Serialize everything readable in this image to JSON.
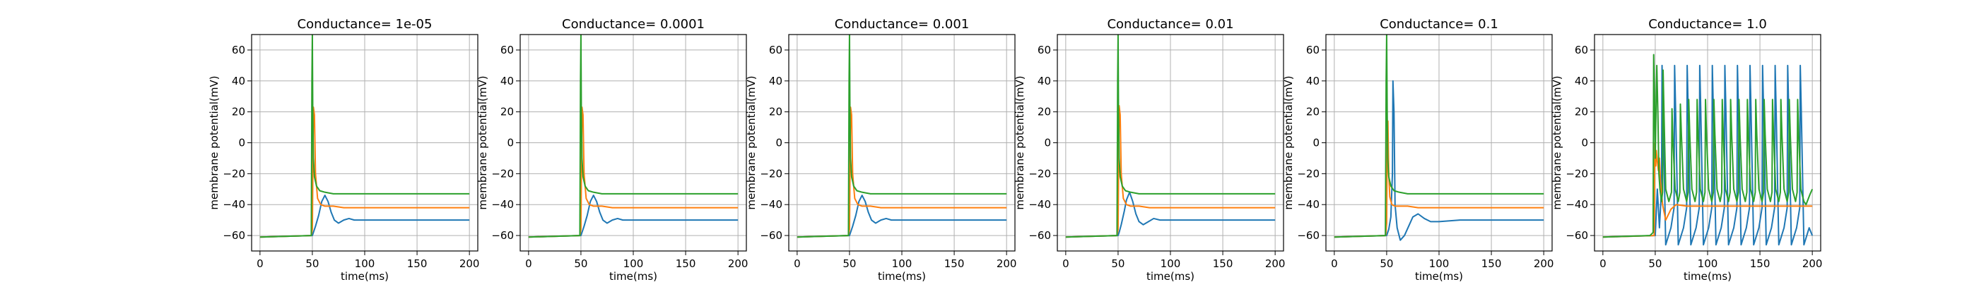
{
  "chart_data": [
    {
      "type": "line",
      "title": "Conductance= 1e-05",
      "xlabel": "time(ms)",
      "ylabel": "membrane potential(mV)",
      "xlim": [
        -8,
        208
      ],
      "ylim": [
        -70,
        70
      ],
      "xticks": [
        0,
        50,
        100,
        150,
        200
      ],
      "yticks": [
        -60,
        -40,
        -20,
        0,
        20,
        40,
        60
      ],
      "grid": true,
      "series": [
        {
          "color": "#1f77b4",
          "x": [
            0,
            49,
            50,
            51,
            53,
            56,
            59,
            62,
            65,
            68,
            71,
            75,
            80,
            85,
            90,
            100,
            120,
            150,
            200
          ],
          "y": [
            -61,
            -60,
            -60,
            -58,
            -54,
            -47,
            -38,
            -34,
            -38,
            -45,
            -50,
            -52,
            -50,
            -49,
            -50,
            -50,
            -50,
            -50,
            -50
          ]
        },
        {
          "color": "#ff7f0e",
          "x": [
            0,
            49,
            50,
            51,
            52,
            53,
            55,
            58,
            62,
            70,
            80,
            100,
            150,
            200
          ],
          "y": [
            -61,
            -60,
            -56,
            23,
            18,
            -20,
            -36,
            -40,
            -41,
            -41,
            -42,
            -42,
            -42,
            -42
          ]
        },
        {
          "color": "#2ca02c",
          "x": [
            0,
            49,
            49.6,
            50,
            50.4,
            51,
            52,
            54,
            57,
            62,
            70,
            80,
            100,
            150,
            200
          ],
          "y": [
            -61,
            -60,
            40,
            70,
            20,
            -10,
            -22,
            -28,
            -31,
            -32,
            -33,
            -33,
            -33,
            -33,
            -33
          ]
        }
      ]
    },
    {
      "type": "line",
      "title": "Conductance= 0.0001",
      "xlabel": "time(ms)",
      "ylabel": "membrane potential(mV)",
      "xlim": [
        -8,
        208
      ],
      "ylim": [
        -70,
        70
      ],
      "xticks": [
        0,
        50,
        100,
        150,
        200
      ],
      "yticks": [
        -60,
        -40,
        -20,
        0,
        20,
        40,
        60
      ],
      "grid": true,
      "series": [
        {
          "color": "#1f77b4",
          "x": [
            0,
            49,
            50,
            51,
            53,
            56,
            59,
            62,
            65,
            68,
            71,
            75,
            80,
            85,
            90,
            100,
            120,
            150,
            200
          ],
          "y": [
            -61,
            -60,
            -60,
            -58,
            -54,
            -47,
            -38,
            -34,
            -38,
            -45,
            -50,
            -52,
            -50,
            -49,
            -50,
            -50,
            -50,
            -50,
            -50
          ]
        },
        {
          "color": "#ff7f0e",
          "x": [
            0,
            49,
            50,
            51,
            52,
            53,
            55,
            58,
            62,
            70,
            80,
            100,
            150,
            200
          ],
          "y": [
            -61,
            -60,
            -56,
            23,
            18,
            -20,
            -36,
            -40,
            -41,
            -41,
            -42,
            -42,
            -42,
            -42
          ]
        },
        {
          "color": "#2ca02c",
          "x": [
            0,
            49,
            49.6,
            50,
            50.4,
            51,
            52,
            54,
            57,
            62,
            70,
            80,
            100,
            150,
            200
          ],
          "y": [
            -61,
            -60,
            40,
            70,
            20,
            -10,
            -22,
            -28,
            -31,
            -32,
            -33,
            -33,
            -33,
            -33,
            -33
          ]
        }
      ]
    },
    {
      "type": "line",
      "title": "Conductance= 0.001",
      "xlabel": "time(ms)",
      "ylabel": "membrane potential(mV)",
      "xlim": [
        -8,
        208
      ],
      "ylim": [
        -70,
        70
      ],
      "xticks": [
        0,
        50,
        100,
        150,
        200
      ],
      "yticks": [
        -60,
        -40,
        -20,
        0,
        20,
        40,
        60
      ],
      "grid": true,
      "series": [
        {
          "color": "#1f77b4",
          "x": [
            0,
            49,
            50,
            51,
            53,
            56,
            59,
            62,
            65,
            68,
            71,
            75,
            80,
            85,
            90,
            100,
            120,
            150,
            200
          ],
          "y": [
            -61,
            -60,
            -60,
            -58,
            -54,
            -47,
            -38,
            -34,
            -38,
            -45,
            -50,
            -52,
            -50,
            -49,
            -50,
            -50,
            -50,
            -50,
            -50
          ]
        },
        {
          "color": "#ff7f0e",
          "x": [
            0,
            49,
            50,
            51,
            52,
            53,
            55,
            58,
            62,
            70,
            80,
            100,
            150,
            200
          ],
          "y": [
            -61,
            -60,
            -56,
            23,
            18,
            -20,
            -36,
            -40,
            -41,
            -41,
            -42,
            -42,
            -42,
            -42
          ]
        },
        {
          "color": "#2ca02c",
          "x": [
            0,
            49,
            49.6,
            50,
            50.4,
            51,
            52,
            54,
            57,
            62,
            70,
            80,
            100,
            150,
            200
          ],
          "y": [
            -61,
            -60,
            40,
            70,
            20,
            -10,
            -22,
            -28,
            -31,
            -32,
            -33,
            -33,
            -33,
            -33,
            -33
          ]
        }
      ]
    },
    {
      "type": "line",
      "title": "Conductance= 0.01",
      "xlabel": "time(ms)",
      "ylabel": "membrane potential(mV)",
      "xlim": [
        -8,
        208
      ],
      "ylim": [
        -70,
        70
      ],
      "xticks": [
        0,
        50,
        100,
        150,
        200
      ],
      "yticks": [
        -60,
        -40,
        -20,
        0,
        20,
        40,
        60
      ],
      "grid": true,
      "series": [
        {
          "color": "#1f77b4",
          "x": [
            0,
            49,
            50,
            51,
            53,
            56,
            58,
            61,
            64,
            67,
            70,
            74,
            79,
            84,
            90,
            100,
            120,
            150,
            200
          ],
          "y": [
            -61,
            -60,
            -60,
            -58,
            -53,
            -44,
            -37,
            -32,
            -38,
            -46,
            -51,
            -53,
            -51,
            -49,
            -50,
            -50,
            -50,
            -50,
            -50
          ]
        },
        {
          "color": "#ff7f0e",
          "x": [
            0,
            49,
            50,
            51,
            52,
            53,
            55,
            58,
            62,
            70,
            80,
            100,
            150,
            200
          ],
          "y": [
            -61,
            -60,
            -56,
            24,
            18,
            -20,
            -36,
            -40,
            -41,
            -41,
            -42,
            -42,
            -42,
            -42
          ]
        },
        {
          "color": "#2ca02c",
          "x": [
            0,
            49,
            49.6,
            50,
            50.4,
            51,
            52,
            54,
            57,
            62,
            70,
            80,
            100,
            150,
            200
          ],
          "y": [
            -61,
            -60,
            40,
            70,
            20,
            -10,
            -22,
            -28,
            -31,
            -32,
            -33,
            -33,
            -33,
            -33,
            -33
          ]
        }
      ]
    },
    {
      "type": "line",
      "title": "Conductance= 0.1",
      "xlabel": "time(ms)",
      "ylabel": "membrane potential(mV)",
      "xlim": [
        -8,
        208
      ],
      "ylim": [
        -70,
        70
      ],
      "xticks": [
        0,
        50,
        100,
        150,
        200
      ],
      "yticks": [
        -60,
        -40,
        -20,
        0,
        20,
        40,
        60
      ],
      "grid": true,
      "series": [
        {
          "color": "#1f77b4",
          "x": [
            0,
            49,
            50,
            52,
            54,
            55.5,
            56,
            57,
            58,
            60,
            63,
            67,
            71,
            75,
            80,
            86,
            92,
            100,
            120,
            150,
            200
          ],
          "y": [
            -61,
            -60,
            -60,
            -56,
            -48,
            -20,
            40,
            20,
            -40,
            -55,
            -63,
            -60,
            -54,
            -48,
            -46,
            -49,
            -51,
            -51,
            -50,
            -50,
            -50
          ]
        },
        {
          "color": "#ff7f0e",
          "x": [
            0,
            49,
            50,
            50.6,
            51.2,
            52,
            53,
            55,
            58,
            62,
            70,
            80,
            100,
            150,
            200
          ],
          "y": [
            -61,
            -60,
            -52,
            8,
            14,
            -20,
            -35,
            -40,
            -41,
            -41,
            -41,
            -42,
            -42,
            -42,
            -42
          ]
        },
        {
          "color": "#2ca02c",
          "x": [
            0,
            48.8,
            49.5,
            50,
            50.5,
            51,
            52,
            54,
            57,
            62,
            70,
            80,
            100,
            150,
            200
          ],
          "y": [
            -61,
            -60,
            40,
            70,
            20,
            -10,
            -22,
            -28,
            -31,
            -32,
            -33,
            -33,
            -33,
            -33,
            -33
          ]
        }
      ]
    },
    {
      "type": "line",
      "title": "Conductance= 1.0",
      "xlabel": "time(ms)",
      "ylabel": "membrane potential(mV)",
      "xlim": [
        -8,
        208
      ],
      "ylim": [
        -70,
        70
      ],
      "xticks": [
        0,
        50,
        100,
        150,
        200
      ],
      "yticks": [
        -60,
        -40,
        -20,
        0,
        20,
        40,
        60
      ],
      "grid": true,
      "series": [
        {
          "color": "#1f77b4",
          "x": [
            0,
            49,
            50,
            52,
            54,
            56,
            56.5,
            57.5,
            60,
            65,
            68,
            68.5,
            69.5,
            72,
            77,
            80,
            80.5,
            81.5,
            84,
            89,
            92,
            92.5,
            93.5,
            96,
            101,
            104,
            104.5,
            105.5,
            108,
            113,
            116,
            116.5,
            117.5,
            120,
            125,
            128,
            128.5,
            129.5,
            132,
            137,
            140,
            140.5,
            141.5,
            144,
            149,
            152,
            152.5,
            153.5,
            156,
            161,
            164,
            164.5,
            165.5,
            168,
            173,
            176,
            176.5,
            177.5,
            180,
            185,
            188,
            188.5,
            189.5,
            192,
            197,
            200
          ],
          "y": [
            -61,
            -60,
            -60,
            -30,
            -55,
            -30,
            50,
            20,
            -66,
            -55,
            -42,
            50,
            20,
            -66,
            -55,
            -42,
            50,
            20,
            -66,
            -55,
            -42,
            50,
            20,
            -66,
            -55,
            -42,
            50,
            20,
            -66,
            -55,
            -42,
            50,
            20,
            -66,
            -55,
            -42,
            50,
            20,
            -66,
            -55,
            -42,
            50,
            20,
            -66,
            -55,
            -42,
            50,
            20,
            -66,
            -55,
            -42,
            50,
            20,
            -66,
            -55,
            -42,
            50,
            20,
            -66,
            -55,
            -42,
            50,
            20,
            -66,
            -55,
            -60
          ]
        },
        {
          "color": "#ff7f0e",
          "x": [
            0,
            49,
            49.5,
            50,
            50.5,
            51,
            52,
            53,
            54,
            55,
            57,
            60,
            65,
            70,
            80,
            100,
            150,
            200
          ],
          "y": [
            -61,
            -60,
            0,
            -10,
            -15,
            -5,
            -12,
            -18,
            -10,
            -25,
            -40,
            -50,
            -43,
            -40,
            -41,
            -41,
            -41,
            -41
          ]
        },
        {
          "color": "#2ca02c",
          "x": [
            0,
            45,
            48,
            48.5,
            49.3,
            50,
            51.5,
            52.5,
            53.5,
            54.5,
            56,
            57,
            57.5,
            58.5,
            60,
            63,
            65.5,
            66,
            67,
            69,
            72,
            73.5,
            74,
            75,
            77,
            80,
            81.5,
            82,
            83,
            85,
            88,
            89.5,
            90,
            91,
            93,
            96,
            97.5,
            98,
            99,
            101,
            104,
            105.5,
            106,
            107,
            109,
            112,
            113.5,
            114,
            115,
            117,
            120,
            121.5,
            122,
            123,
            125,
            128,
            129.5,
            130,
            131,
            133,
            136,
            137.5,
            138,
            139,
            141,
            144,
            145.5,
            146,
            147,
            149,
            152,
            153.5,
            154,
            155,
            157,
            160,
            161.5,
            162,
            163,
            165,
            168,
            169.5,
            170,
            171,
            173,
            176,
            177.5,
            178,
            179,
            181,
            184,
            185.5,
            186,
            187,
            189,
            192,
            194,
            198,
            200
          ],
          "y": [
            -61,
            -60,
            -58,
            57,
            30,
            -10,
            50,
            20,
            -20,
            -30,
            -38,
            -32,
            47,
            15,
            -30,
            -38,
            -32,
            22,
            0,
            -30,
            -38,
            -32,
            25,
            5,
            -30,
            -38,
            -32,
            28,
            5,
            -30,
            -38,
            -32,
            28,
            5,
            -30,
            -38,
            -32,
            28,
            5,
            -30,
            -38,
            -32,
            28,
            5,
            -30,
            -38,
            -32,
            28,
            5,
            -30,
            -38,
            -32,
            28,
            5,
            -30,
            -38,
            -32,
            28,
            5,
            -30,
            -38,
            -32,
            28,
            5,
            -30,
            -38,
            -32,
            28,
            5,
            -30,
            -38,
            -32,
            28,
            5,
            -30,
            -38,
            -32,
            28,
            5,
            -30,
            -38,
            -32,
            28,
            5,
            -30,
            -38,
            -32,
            28,
            5,
            -30,
            -38,
            -32,
            28,
            5,
            -30,
            -38,
            -40,
            -33,
            -30
          ]
        }
      ]
    }
  ]
}
